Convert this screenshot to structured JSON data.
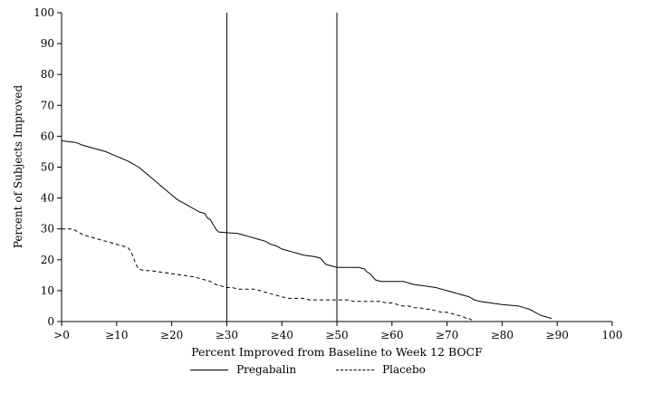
{
  "chart_data": {
    "type": "line",
    "title": "",
    "xlabel": "Percent Improved from Baseline to Week 12 BOCF",
    "ylabel": "Percent of Subjects Improved",
    "xlim": [
      0,
      100
    ],
    "ylim": [
      0,
      100
    ],
    "grid": false,
    "legend_position": "bottom",
    "colors": {
      "line": "#000000",
      "background": "#ffffff"
    },
    "y_ticks": [
      0,
      10,
      20,
      30,
      40,
      50,
      60,
      70,
      80,
      90,
      100
    ],
    "x_ticks": [
      {
        "value": 0,
        "label": ">0"
      },
      {
        "value": 10,
        "label": "≥10"
      },
      {
        "value": 20,
        "label": "≥20"
      },
      {
        "value": 30,
        "label": "≥30"
      },
      {
        "value": 40,
        "label": "≥40"
      },
      {
        "value": 50,
        "label": "≥50"
      },
      {
        "value": 60,
        "label": "≥60"
      },
      {
        "value": 70,
        "label": "≥70"
      },
      {
        "value": 80,
        "label": "≥80"
      },
      {
        "value": 90,
        "label": "≥90"
      },
      {
        "value": 100,
        "label": "100"
      }
    ],
    "reference_lines_x": [
      30,
      50
    ],
    "series": [
      {
        "name": "Pregabalin",
        "style": "solid",
        "points": [
          [
            0,
            58.5
          ],
          [
            2.5,
            58
          ],
          [
            4,
            57
          ],
          [
            6,
            56
          ],
          [
            8,
            55
          ],
          [
            10,
            53.5
          ],
          [
            12,
            52
          ],
          [
            13,
            51
          ],
          [
            14,
            50
          ],
          [
            15,
            48.5
          ],
          [
            16,
            47
          ],
          [
            17,
            45.5
          ],
          [
            18,
            44
          ],
          [
            19,
            42.5
          ],
          [
            20,
            41
          ],
          [
            21,
            39.5
          ],
          [
            22,
            38.5
          ],
          [
            23,
            37.5
          ],
          [
            24,
            36.5
          ],
          [
            25,
            35.5
          ],
          [
            26,
            35
          ],
          [
            26.5,
            33.5
          ],
          [
            27,
            33
          ],
          [
            27.5,
            31.5
          ],
          [
            28,
            30
          ],
          [
            28.5,
            29
          ],
          [
            32,
            28.5
          ],
          [
            33,
            28
          ],
          [
            34,
            27.5
          ],
          [
            35,
            27
          ],
          [
            36,
            26.5
          ],
          [
            37,
            26
          ],
          [
            38,
            25
          ],
          [
            39,
            24.5
          ],
          [
            40,
            23.5
          ],
          [
            41,
            23
          ],
          [
            42,
            22.5
          ],
          [
            43,
            22
          ],
          [
            44,
            21.5
          ],
          [
            46,
            21
          ],
          [
            47,
            20.5
          ],
          [
            47.5,
            19.5
          ],
          [
            48,
            18.5
          ],
          [
            49,
            18
          ],
          [
            50,
            17.5
          ],
          [
            54,
            17.5
          ],
          [
            55,
            17
          ],
          [
            55.5,
            16
          ],
          [
            56,
            15.5
          ],
          [
            56.5,
            14.5
          ],
          [
            57,
            13.5
          ],
          [
            58,
            13
          ],
          [
            62,
            13
          ],
          [
            63,
            12.5
          ],
          [
            64,
            12
          ],
          [
            66,
            11.5
          ],
          [
            68,
            11
          ],
          [
            69,
            10.5
          ],
          [
            70,
            10
          ],
          [
            71,
            9.5
          ],
          [
            72,
            9
          ],
          [
            73,
            8.5
          ],
          [
            74,
            8
          ],
          [
            74.5,
            7.5
          ],
          [
            75,
            7
          ],
          [
            76,
            6.5
          ],
          [
            78,
            6
          ],
          [
            80,
            5.5
          ],
          [
            83,
            5
          ],
          [
            84,
            4.5
          ],
          [
            85,
            4
          ],
          [
            85.5,
            3.5
          ],
          [
            86,
            3
          ],
          [
            86.5,
            2.5
          ],
          [
            87,
            2
          ],
          [
            88,
            1.5
          ],
          [
            89,
            1
          ]
        ]
      },
      {
        "name": "Placebo",
        "style": "dashed",
        "points": [
          [
            0,
            30
          ],
          [
            2,
            30
          ],
          [
            3,
            29
          ],
          [
            4,
            28
          ],
          [
            5,
            27.5
          ],
          [
            6,
            27
          ],
          [
            7,
            26.5
          ],
          [
            8,
            26
          ],
          [
            9,
            25.5
          ],
          [
            10,
            25
          ],
          [
            11,
            24.5
          ],
          [
            12,
            24
          ],
          [
            12.5,
            23
          ],
          [
            13,
            21
          ],
          [
            13.5,
            18.5
          ],
          [
            14,
            17
          ],
          [
            15,
            16.5
          ],
          [
            16,
            16.5
          ],
          [
            18,
            16
          ],
          [
            20,
            15.5
          ],
          [
            22,
            15
          ],
          [
            24,
            14.5
          ],
          [
            25,
            14
          ],
          [
            26,
            13.5
          ],
          [
            27,
            13
          ],
          [
            27.5,
            12.5
          ],
          [
            28,
            12
          ],
          [
            29,
            11.5
          ],
          [
            30,
            11
          ],
          [
            31,
            11
          ],
          [
            32,
            10.5
          ],
          [
            35,
            10.5
          ],
          [
            36,
            10
          ],
          [
            37,
            9.5
          ],
          [
            38,
            9
          ],
          [
            39,
            8.5
          ],
          [
            40,
            8
          ],
          [
            41,
            7.5
          ],
          [
            44,
            7.5
          ],
          [
            45,
            7
          ],
          [
            50,
            7
          ],
          [
            52,
            7
          ],
          [
            53,
            6.5
          ],
          [
            58,
            6.5
          ],
          [
            59,
            6
          ],
          [
            60,
            6
          ],
          [
            61,
            5.5
          ],
          [
            62,
            5
          ],
          [
            63,
            5
          ],
          [
            64,
            4.5
          ],
          [
            65,
            4.5
          ],
          [
            66,
            4
          ],
          [
            67,
            4
          ],
          [
            68,
            3.5
          ],
          [
            69,
            3
          ],
          [
            70,
            3
          ],
          [
            71,
            2.5
          ],
          [
            72,
            2
          ],
          [
            73,
            1.5
          ],
          [
            73.5,
            1
          ],
          [
            74,
            1
          ],
          [
            74.5,
            0.5
          ]
        ]
      }
    ]
  }
}
